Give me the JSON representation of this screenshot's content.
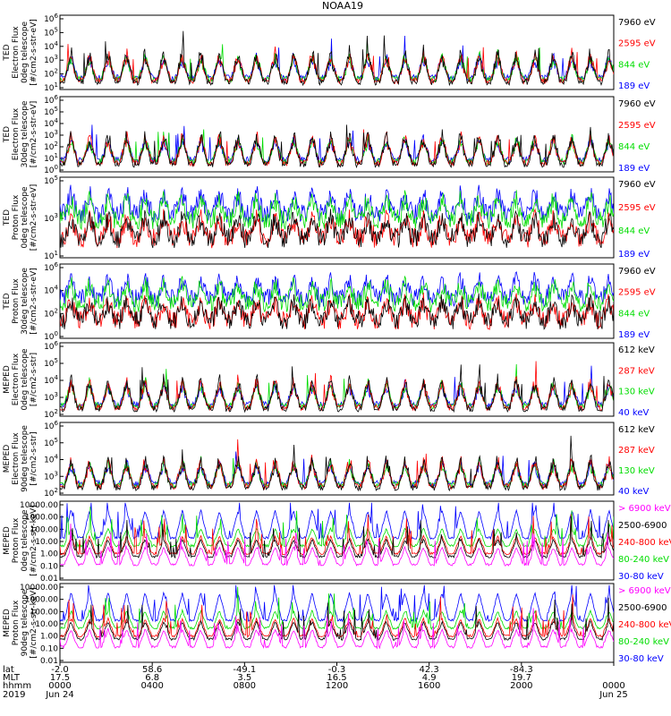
{
  "chart_data": {
    "type": "line",
    "title": "NOAA19",
    "panels": [
      {
        "ylabel_lines": [
          "TED",
          "Electron Flux",
          "0deg telescope",
          "[#/cm2-s-str-eV]"
        ],
        "ytick_labels": [
          "10^1",
          "10^2",
          "10^3",
          "10^4",
          "10^5",
          "10^6"
        ],
        "ylim": [
          1,
          1000000
        ],
        "yscale": "log",
        "channels": [
          {
            "name": "7960 eV",
            "color": "#000000"
          },
          {
            "name": "2595 eV",
            "color": "#ff0000"
          },
          {
            "name": "844 eV",
            "color": "#00dd00"
          },
          {
            "name": "189 eV",
            "color": "#0000ff"
          }
        ]
      },
      {
        "ylabel_lines": [
          "TED",
          "Electron Flux",
          "30deg telescope",
          "[#/cm2-s-str-eV]"
        ],
        "ytick_labels": [
          "10^0",
          "10^1",
          "10^2",
          "10^3",
          "10^4",
          "10^5",
          "10^6"
        ],
        "ylim": [
          1,
          1000000
        ],
        "yscale": "log",
        "channels": [
          {
            "name": "7960 eV",
            "color": "#000000"
          },
          {
            "name": "2595 eV",
            "color": "#ff0000"
          },
          {
            "name": "844 eV",
            "color": "#00dd00"
          },
          {
            "name": "189 eV",
            "color": "#0000ff"
          }
        ]
      },
      {
        "ylabel_lines": [
          "TED",
          "Proton Flux",
          "0deg telescope",
          "[#/cm2-s-str-eV]"
        ],
        "ytick_labels": [
          "10^1",
          "10^3",
          "10^5"
        ],
        "ylim": [
          1,
          100000
        ],
        "yscale": "log",
        "channels": [
          {
            "name": "7960 eV",
            "color": "#000000"
          },
          {
            "name": "2595 eV",
            "color": "#ff0000"
          },
          {
            "name": "844 eV",
            "color": "#00dd00"
          },
          {
            "name": "189 eV",
            "color": "#0000ff"
          }
        ]
      },
      {
        "ylabel_lines": [
          "TED",
          "Proton Flux",
          "30deg telescope",
          "[#/cm2-s-str-eV]"
        ],
        "ytick_labels": [
          "10^0",
          "10^2",
          "10^4",
          "10^6"
        ],
        "ylim": [
          1,
          1000000
        ],
        "yscale": "log",
        "channels": [
          {
            "name": "7960 eV",
            "color": "#000000"
          },
          {
            "name": "2595 eV",
            "color": "#ff0000"
          },
          {
            "name": "844 eV",
            "color": "#00dd00"
          },
          {
            "name": "189 eV",
            "color": "#0000ff"
          }
        ]
      },
      {
        "ylabel_lines": [
          "MEPED",
          "Electron Flux",
          "0deg telescope",
          "[#/cm2-s-str]"
        ],
        "ytick_labels": [
          "10^2",
          "10^3",
          "10^4",
          "10^5",
          "10^6"
        ],
        "ylim": [
          100,
          1000000
        ],
        "yscale": "log",
        "channels": [
          {
            "name": "612 keV",
            "color": "#000000"
          },
          {
            "name": "287 keV",
            "color": "#ff0000"
          },
          {
            "name": "130 keV",
            "color": "#00dd00"
          },
          {
            "name": "40 keV",
            "color": "#0000ff"
          }
        ]
      },
      {
        "ylabel_lines": [
          "MEPED",
          "Electron Flux",
          "90deg telescope",
          "[#/cm2-s-str]"
        ],
        "ytick_labels": [
          "10^2",
          "10^3",
          "10^4",
          "10^5",
          "10^6"
        ],
        "ylim": [
          100,
          1000000
        ],
        "yscale": "log",
        "channels": [
          {
            "name": "612 keV",
            "color": "#000000"
          },
          {
            "name": "287 keV",
            "color": "#ff0000"
          },
          {
            "name": "130 keV",
            "color": "#00dd00"
          },
          {
            "name": "40 keV",
            "color": "#0000ff"
          }
        ]
      },
      {
        "ylabel_lines": [
          "MEPED",
          "Proton Flux",
          "0deg telescope",
          "[#/cm2-s-str-keV]"
        ],
        "ytick_labels": [
          "0.01",
          "0.10",
          "1.00",
          "10.00",
          "100.00",
          "1000.00",
          "10000.00"
        ],
        "ylim": [
          0.01,
          10000
        ],
        "yscale": "log",
        "channels": [
          {
            "name": "> 6900 keV",
            "color": "#ff00ff"
          },
          {
            "name": "2500-6900",
            "color": "#000000"
          },
          {
            "name": "240-800 keV",
            "color": "#ff0000"
          },
          {
            "name": "80-240 keV",
            "color": "#00dd00"
          },
          {
            "name": "30-80 keV",
            "color": "#0000ff"
          }
        ]
      },
      {
        "ylabel_lines": [
          "MEPED",
          "Proton Flux",
          "90deg telescope",
          "[#/cm2-s-str-keV]"
        ],
        "ytick_labels": [
          "0.01",
          "0.10",
          "1.00",
          "10.00",
          "100.00",
          "1000.00",
          "10000.00"
        ],
        "ylim": [
          0.01,
          10000
        ],
        "yscale": "log",
        "channels": [
          {
            "name": "> 6900 keV",
            "color": "#ff00ff"
          },
          {
            "name": "2500-6900",
            "color": "#000000"
          },
          {
            "name": "240-800 keV",
            "color": "#ff0000"
          },
          {
            "name": "80-240 keV",
            "color": "#00dd00"
          },
          {
            "name": "30-80 keV",
            "color": "#0000ff"
          }
        ]
      }
    ],
    "x_axis": {
      "row_labels": [
        "lat",
        "MLT",
        "hhmm",
        "2019"
      ],
      "ticks": [
        {
          "lat": "-2.0",
          "mlt": "17.5",
          "hhmm": "0000",
          "date": "Jun 24"
        },
        {
          "lat": "58.6",
          "mlt": "6.8",
          "hhmm": "0400",
          "date": ""
        },
        {
          "lat": "-49.1",
          "mlt": "3.5",
          "hhmm": "0800",
          "date": ""
        },
        {
          "lat": "-0.3",
          "mlt": "16.5",
          "hhmm": "1200",
          "date": ""
        },
        {
          "lat": "42.3",
          "mlt": "4.9",
          "hhmm": "1600",
          "date": ""
        },
        {
          "lat": "-84.3",
          "mlt": "19.7",
          "hhmm": "2000",
          "date": ""
        },
        {
          "lat": "",
          "mlt": "",
          "hhmm": "0000",
          "date": "Jun 25"
        }
      ]
    }
  }
}
